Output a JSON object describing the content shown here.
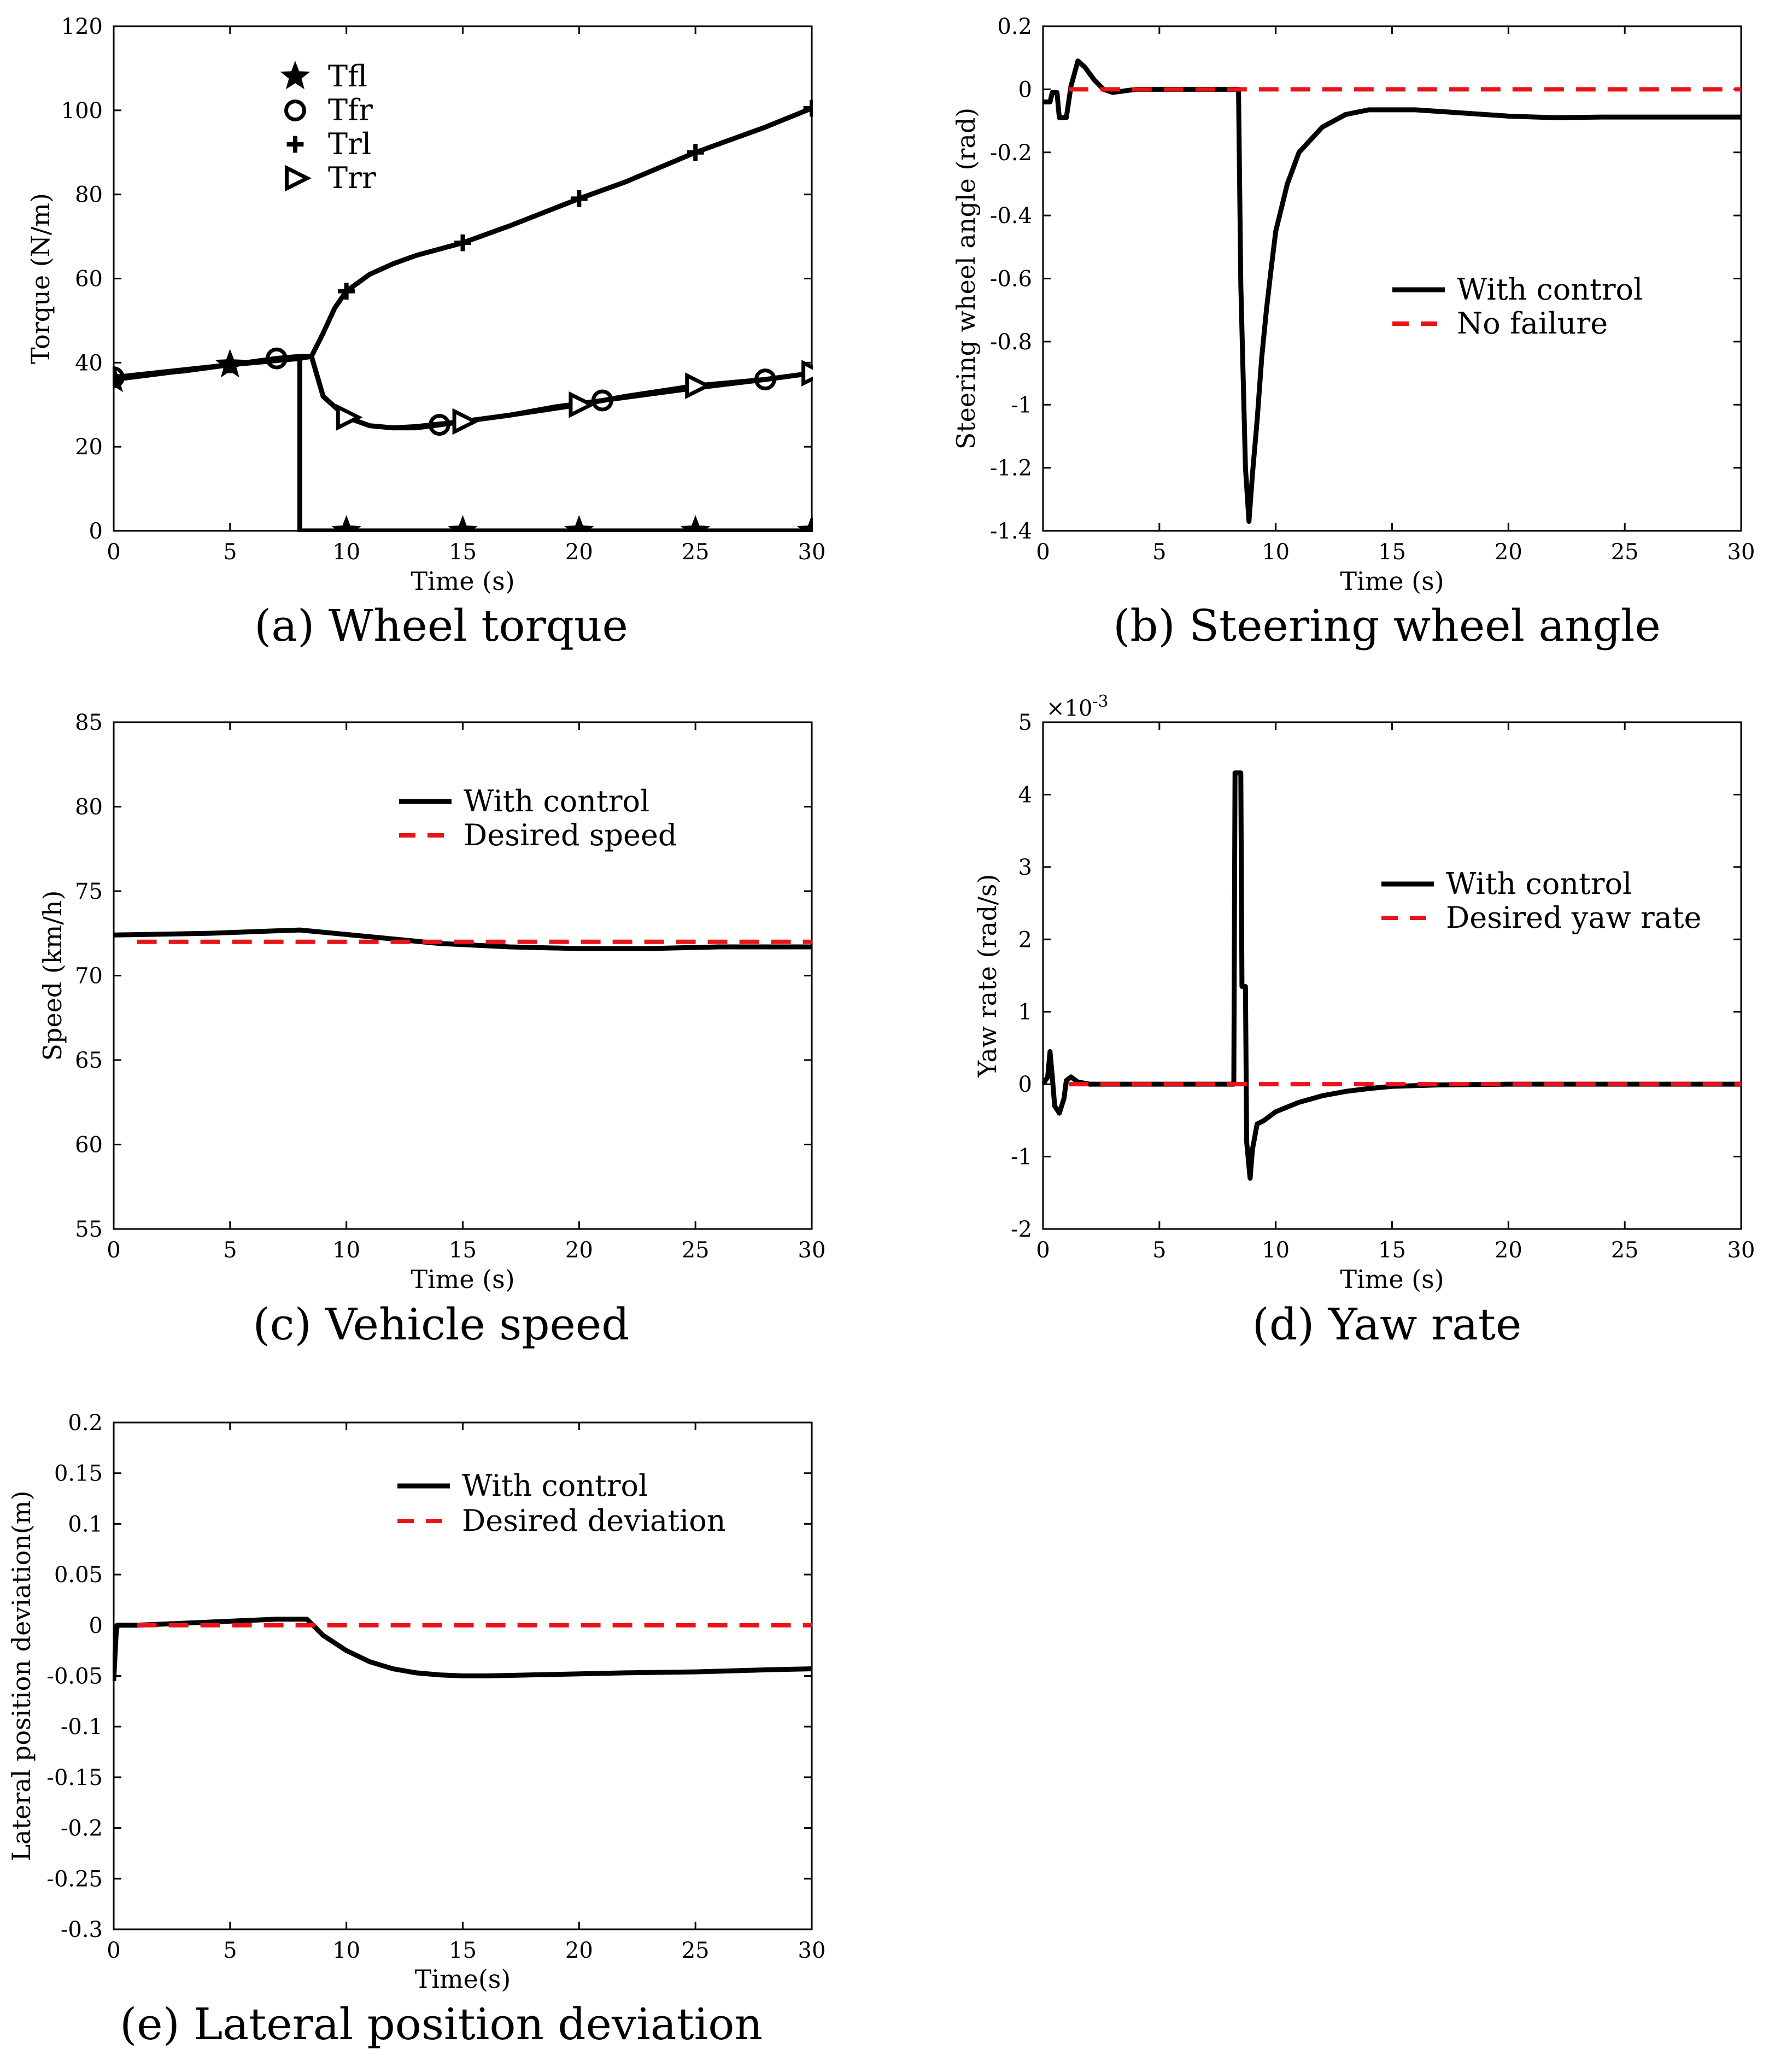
{
  "colors": {
    "control": "#000000",
    "reference": "#e8141a",
    "axis": "#000000"
  },
  "chart_data": [
    {
      "id": "a",
      "type": "line",
      "caption": {
        "letter": "(a)",
        "text": "Wheel torque"
      },
      "xlabel": "Time (s)",
      "ylabel": "Torque (N/m)",
      "xlim": [
        0,
        30
      ],
      "ylim": [
        0,
        120
      ],
      "xticks": [
        "0",
        "5",
        "10",
        "15",
        "20",
        "25",
        "30"
      ],
      "yticks": [
        "0",
        "20",
        "40",
        "60",
        "80",
        "100",
        "120"
      ],
      "xtick_values": [
        0,
        5,
        10,
        15,
        20,
        25,
        30
      ],
      "ytick_values": [
        0,
        20,
        40,
        60,
        80,
        100,
        120
      ],
      "legend_position": "top-left",
      "grid": false,
      "series": [
        {
          "name": "Tfl",
          "marker": "star",
          "color": "#000000",
          "x": [
            0,
            2,
            5,
            7,
            7.999,
            8.0,
            10,
            15,
            20,
            25,
            30
          ],
          "y": [
            36,
            37.5,
            39.5,
            40.8,
            41,
            0,
            0,
            0,
            0,
            0,
            0
          ],
          "marker_x": [
            0,
            5,
            10,
            15,
            20,
            25,
            30
          ],
          "marker_y": [
            36,
            39.5,
            0,
            0,
            0,
            0,
            0
          ]
        },
        {
          "name": "Tfr",
          "marker": "circle",
          "color": "#000000",
          "x": [
            0,
            3,
            5,
            7,
            8,
            8.5,
            9,
            10,
            11,
            12,
            13,
            14,
            15,
            17,
            19,
            21,
            23,
            25,
            28,
            30
          ],
          "y": [
            36.5,
            38,
            39.5,
            41,
            41.5,
            41.5,
            32,
            27,
            25,
            24.5,
            24.5,
            25.2,
            26,
            27.5,
            29.5,
            31,
            32.5,
            34,
            36,
            37.5
          ],
          "marker_x": [
            0,
            7,
            14,
            21,
            28
          ],
          "marker_y": [
            36.5,
            41,
            25.2,
            31,
            36
          ]
        },
        {
          "name": "Trl",
          "marker": "plus",
          "color": "#000000",
          "x": [
            0,
            5,
            8,
            8.5,
            9,
            9.5,
            10,
            11,
            12,
            13,
            15,
            17,
            20,
            22,
            25,
            28,
            30
          ],
          "y": [
            36,
            39.5,
            41,
            41.5,
            47,
            53,
            57,
            61,
            63.5,
            65.5,
            68.5,
            72.5,
            79,
            83,
            90,
            96,
            100.5
          ],
          "marker_x": [
            0,
            5,
            10,
            15,
            20,
            25,
            30
          ],
          "marker_y": [
            36,
            39.5,
            57,
            68.5,
            79,
            90,
            100.5
          ]
        },
        {
          "name": "Trr",
          "marker": "triangle-right",
          "color": "#000000",
          "x": [
            0,
            5,
            8,
            8.5,
            9,
            10,
            11,
            12,
            13,
            15,
            17,
            20,
            22,
            25,
            28,
            30
          ],
          "y": [
            36.5,
            39.5,
            41,
            41.5,
            32,
            27,
            25,
            24.5,
            24.8,
            26,
            27.5,
            30,
            32,
            34.5,
            36,
            37.5
          ],
          "marker_x": [
            10,
            15,
            20,
            25,
            30
          ],
          "marker_y": [
            27,
            26,
            30,
            34.5,
            37.5
          ]
        }
      ]
    },
    {
      "id": "b",
      "type": "line",
      "caption": {
        "letter": "(b)",
        "text": "Steering wheel angle"
      },
      "xlabel": "Time (s)",
      "ylabel": "Steering wheel angle (rad)",
      "xlim": [
        0,
        30
      ],
      "ylim": [
        -1.4,
        0.2
      ],
      "xticks": [
        "0",
        "5",
        "10",
        "15",
        "20",
        "25",
        "30"
      ],
      "yticks": [
        "-1.4",
        "-1.2",
        "-1",
        "-0.8",
        "-0.6",
        "-0.4",
        "-0.2",
        "0",
        "0.2"
      ],
      "xtick_values": [
        0,
        5,
        10,
        15,
        20,
        25,
        30
      ],
      "ytick_values": [
        -1.4,
        -1.2,
        -1,
        -0.8,
        -0.6,
        -0.4,
        -0.2,
        0,
        0.2
      ],
      "legend_position": "center-right",
      "grid": false,
      "series": [
        {
          "name": "With control",
          "style": "solid",
          "color": "#000000",
          "x": [
            0,
            0.3,
            0.4,
            0.6,
            0.7,
            1.0,
            1.2,
            1.5,
            1.8,
            2.2,
            2.6,
            3.0,
            4.0,
            8.4,
            8.5,
            8.7,
            8.85,
            9.0,
            9.2,
            9.4,
            9.6,
            9.8,
            10.0,
            10.5,
            11,
            12,
            13,
            14,
            16,
            18,
            20,
            22,
            24,
            26,
            28,
            30
          ],
          "y": [
            -0.04,
            -0.04,
            -0.01,
            -0.01,
            -0.09,
            -0.09,
            0.01,
            0.09,
            0.07,
            0.03,
            0.0,
            -0.01,
            0.0,
            0.0,
            -0.62,
            -1.2,
            -1.37,
            -1.22,
            -1.05,
            -0.85,
            -0.7,
            -0.57,
            -0.45,
            -0.3,
            -0.2,
            -0.12,
            -0.08,
            -0.065,
            -0.065,
            -0.075,
            -0.085,
            -0.09,
            -0.088,
            -0.088,
            -0.088,
            -0.088
          ]
        },
        {
          "name": "No failure",
          "style": "dashed",
          "color": "#e8141a",
          "x": [
            1.1,
            30
          ],
          "y": [
            0,
            0
          ]
        }
      ]
    },
    {
      "id": "c",
      "type": "line",
      "caption": {
        "letter": "(c)",
        "text": "Vehicle speed"
      },
      "xlabel": "Time (s)",
      "ylabel": "Speed (km/h)",
      "xlim": [
        0,
        30
      ],
      "ylim": [
        55,
        85
      ],
      "xticks": [
        "0",
        "5",
        "10",
        "15",
        "20",
        "25",
        "30"
      ],
      "yticks": [
        "55",
        "60",
        "65",
        "70",
        "75",
        "80",
        "85"
      ],
      "xtick_values": [
        0,
        5,
        10,
        15,
        20,
        25,
        30
      ],
      "ytick_values": [
        55,
        60,
        65,
        70,
        75,
        80,
        85
      ],
      "legend_position": "top-right",
      "grid": false,
      "series": [
        {
          "name": "With control",
          "style": "solid",
          "color": "#000000",
          "x": [
            0,
            4,
            8,
            11,
            14,
            17,
            20,
            23,
            26,
            30
          ],
          "y": [
            72.4,
            72.5,
            72.7,
            72.3,
            71.9,
            71.7,
            71.6,
            71.6,
            71.7,
            71.7
          ]
        },
        {
          "name": "Desired speed",
          "style": "dashed",
          "color": "#e8141a",
          "x": [
            1,
            30
          ],
          "y": [
            72,
            72
          ]
        }
      ]
    },
    {
      "id": "d",
      "type": "line",
      "caption": {
        "letter": "(d)",
        "text": "Yaw rate"
      },
      "xlabel": "Time (s)",
      "ylabel": "Yaw rate (rad/s)",
      "scale_label": "×10",
      "scale_exponent": "-3",
      "xlim": [
        0,
        30
      ],
      "ylim": [
        -2,
        5
      ],
      "xticks": [
        "0",
        "5",
        "10",
        "15",
        "20",
        "25",
        "30"
      ],
      "yticks": [
        "-2",
        "-1",
        "0",
        "1",
        "2",
        "3",
        "4",
        "5"
      ],
      "xtick_values": [
        0,
        5,
        10,
        15,
        20,
        25,
        30
      ],
      "ytick_values": [
        -2,
        -1,
        0,
        1,
        2,
        3,
        4,
        5
      ],
      "legend_position": "top-right",
      "grid": false,
      "series": [
        {
          "name": "With control",
          "style": "solid",
          "color": "#000000",
          "x": [
            0,
            0.2,
            0.3,
            0.4,
            0.5,
            0.7,
            0.9,
            1.0,
            1.2,
            1.5,
            2.0,
            3.0,
            8.2,
            8.25,
            8.5,
            8.55,
            8.7,
            8.75,
            8.9,
            9.0,
            9.2,
            9.5,
            10.0,
            11.0,
            12.0,
            13.0,
            14.0,
            15.0,
            17.0,
            20.0,
            25.0,
            30.0
          ],
          "y": [
            0,
            0.1,
            0.45,
            0.1,
            -0.3,
            -0.4,
            -0.2,
            0.05,
            0.1,
            0.03,
            0.0,
            0.0,
            0.0,
            4.3,
            4.3,
            1.35,
            1.35,
            -0.8,
            -1.3,
            -0.9,
            -0.55,
            -0.5,
            -0.38,
            -0.25,
            -0.16,
            -0.1,
            -0.06,
            -0.03,
            -0.01,
            0.0,
            0.0,
            0.0
          ]
        },
        {
          "name": "Desired yaw rate",
          "style": "dashed",
          "color": "#e8141a",
          "x": [
            1.1,
            30
          ],
          "y": [
            0,
            0
          ]
        }
      ]
    },
    {
      "id": "e",
      "type": "line",
      "caption": {
        "letter": "(e)",
        "text": "Lateral position deviation"
      },
      "xlabel": "Time(s)",
      "ylabel": "Lateral position deviation(m)",
      "xlim": [
        0,
        30
      ],
      "ylim": [
        -0.3,
        0.2
      ],
      "xticks": [
        "0",
        "5",
        "10",
        "15",
        "20",
        "25",
        "30"
      ],
      "yticks": [
        "-0.3",
        "-0.25",
        "-0.2",
        "-0.15",
        "-0.1",
        "-0.05",
        "0",
        "0.05",
        "0.1",
        "0.15",
        "0.2"
      ],
      "xtick_values": [
        0,
        5,
        10,
        15,
        20,
        25,
        30
      ],
      "ytick_values": [
        -0.3,
        -0.25,
        -0.2,
        -0.15,
        -0.1,
        -0.05,
        0,
        0.05,
        0.1,
        0.15,
        0.2
      ],
      "legend_position": "top-right",
      "grid": false,
      "series": [
        {
          "name": "With control",
          "style": "solid",
          "color": "#000000",
          "x": [
            0,
            0.1,
            0.15,
            1,
            3,
            5,
            7,
            8.3,
            9,
            10,
            11,
            12,
            13,
            14,
            15,
            16,
            18,
            20,
            22,
            25,
            28,
            30
          ],
          "y": [
            -0.055,
            -0.01,
            0.0,
            0.0,
            0.002,
            0.004,
            0.006,
            0.006,
            -0.01,
            -0.025,
            -0.036,
            -0.043,
            -0.047,
            -0.049,
            -0.05,
            -0.05,
            -0.049,
            -0.048,
            -0.047,
            -0.046,
            -0.044,
            -0.043
          ]
        },
        {
          "name": "Desired deviation",
          "style": "dashed",
          "color": "#e8141a",
          "x": [
            1,
            30
          ],
          "y": [
            0,
            0
          ]
        }
      ]
    }
  ]
}
